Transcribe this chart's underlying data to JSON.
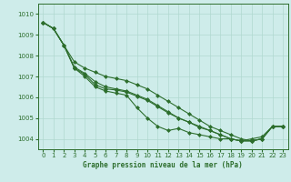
{
  "title": "Graphe pression niveau de la mer (hPa)",
  "xlim": [
    -0.5,
    23.5
  ],
  "ylim": [
    1003.5,
    1010.5
  ],
  "yticks": [
    1004,
    1005,
    1006,
    1007,
    1008,
    1009,
    1010
  ],
  "xticks": [
    0,
    1,
    2,
    3,
    4,
    5,
    6,
    7,
    8,
    9,
    10,
    11,
    12,
    13,
    14,
    15,
    16,
    17,
    18,
    19,
    20,
    21,
    22,
    23
  ],
  "background_color": "#ceecea",
  "grid_color": "#b0d8d0",
  "line_color": "#2d6e2d",
  "marker": "D",
  "markersize": 2.0,
  "linewidth": 0.8,
  "series": [
    {
      "x": [
        0,
        1,
        2,
        3,
        4,
        5,
        6,
        7,
        8,
        9,
        10,
        11,
        12,
        13,
        14,
        15,
        16,
        17,
        18,
        19,
        20,
        21,
        22,
        23
      ],
      "y": [
        1009.6,
        1009.3,
        1008.5,
        1007.4,
        1007.0,
        1006.5,
        1006.3,
        1006.2,
        1006.1,
        1005.5,
        1005.0,
        1004.6,
        1004.4,
        1004.5,
        1004.3,
        1004.2,
        1004.1,
        1004.0,
        1004.0,
        1003.9,
        1004.0,
        1004.1,
        1004.6,
        1004.6
      ]
    },
    {
      "x": [
        0,
        1,
        2,
        3,
        4,
        5,
        6,
        7,
        8,
        9,
        10,
        11,
        12,
        13,
        14,
        15,
        16,
        17,
        18,
        19,
        20,
        21,
        22,
        23
      ],
      "y": [
        1009.6,
        1009.3,
        1008.5,
        1007.4,
        1007.1,
        1006.6,
        1006.4,
        1006.35,
        1006.25,
        1006.05,
        1005.85,
        1005.55,
        1005.25,
        1005.0,
        1004.8,
        1004.55,
        1004.4,
        1004.2,
        1004.0,
        1003.9,
        1003.9,
        1004.0,
        1004.6,
        1004.6
      ]
    },
    {
      "x": [
        0,
        1,
        2,
        3,
        4,
        5,
        6,
        7,
        8,
        9,
        10,
        11,
        12,
        13,
        14,
        15,
        16,
        17,
        18,
        19,
        20,
        21,
        22,
        23
      ],
      "y": [
        1009.6,
        1009.3,
        1008.5,
        1007.45,
        1007.15,
        1006.75,
        1006.5,
        1006.4,
        1006.3,
        1006.1,
        1005.9,
        1005.6,
        1005.3,
        1005.0,
        1004.8,
        1004.6,
        1004.4,
        1004.2,
        1004.0,
        1003.9,
        1003.9,
        1004.0,
        1004.6,
        1004.6
      ]
    },
    {
      "x": [
        0,
        1,
        2,
        3,
        4,
        5,
        6,
        7,
        8,
        9,
        10,
        11,
        12,
        13,
        14,
        15,
        16,
        17,
        18,
        19,
        20,
        21,
        22,
        23
      ],
      "y": [
        1009.6,
        1009.3,
        1008.5,
        1007.7,
        1007.4,
        1007.2,
        1007.0,
        1006.9,
        1006.8,
        1006.6,
        1006.4,
        1006.1,
        1005.8,
        1005.5,
        1005.2,
        1004.9,
        1004.6,
        1004.4,
        1004.2,
        1004.0,
        1003.9,
        1004.0,
        1004.6,
        1004.6
      ]
    }
  ]
}
